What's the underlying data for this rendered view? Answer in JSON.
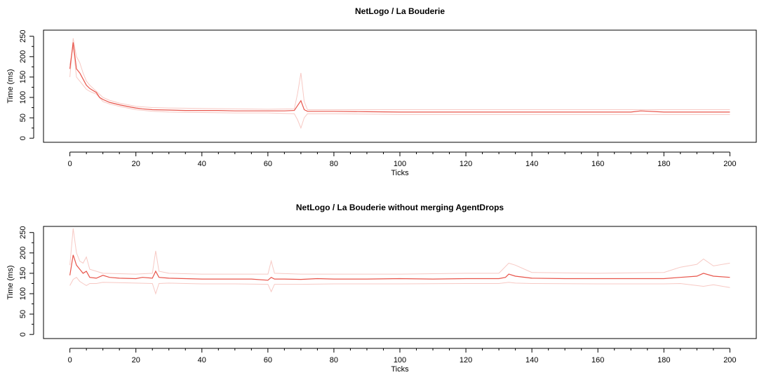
{
  "chart_data": [
    {
      "type": "line",
      "title": "NetLogo / La Bouderie",
      "xlabel": "Ticks",
      "ylabel": "Time (ms)",
      "xlim": [
        -8,
        208
      ],
      "ylim": [
        -10,
        265
      ],
      "xticks": [
        0,
        20,
        40,
        60,
        80,
        100,
        120,
        140,
        160,
        180,
        200
      ],
      "yticks": [
        0,
        50,
        100,
        150,
        200,
        250
      ],
      "grid": false,
      "colors": {
        "mean": "#e8544a",
        "band": "#f7c9c4"
      },
      "series": [
        {
          "x": [
            0,
            1,
            2,
            3,
            4,
            5,
            6,
            7,
            8,
            9,
            10,
            12,
            15,
            18,
            20,
            22,
            25,
            30,
            35,
            40,
            45,
            50,
            55,
            60,
            65,
            68,
            69,
            70,
            71,
            72,
            75,
            80,
            90,
            100,
            110,
            120,
            130,
            140,
            150,
            160,
            170,
            173,
            180,
            190,
            200
          ],
          "values": [
            170,
            235,
            170,
            160,
            145,
            130,
            122,
            117,
            112,
            100,
            95,
            88,
            82,
            77,
            74,
            72,
            70,
            69,
            68,
            68,
            68,
            67,
            67,
            67,
            67,
            68,
            80,
            92,
            70,
            66,
            66,
            66,
            65,
            64,
            64,
            64,
            64,
            64,
            64,
            64,
            64,
            67,
            64,
            64,
            64
          ]
        },
        {
          "x": [
            0,
            1,
            2,
            3,
            4,
            5,
            6,
            8,
            10,
            12,
            15,
            20,
            25,
            30,
            40,
            50,
            60,
            68,
            69,
            70,
            71,
            72,
            80,
            100,
            120,
            140,
            160,
            180,
            200
          ],
          "values": [
            150,
            245,
            200,
            185,
            160,
            140,
            130,
            115,
            100,
            93,
            86,
            78,
            75,
            74,
            73,
            72,
            71,
            72,
            110,
            160,
            90,
            70,
            70,
            70,
            70,
            70,
            70,
            70,
            70
          ]
        },
        {
          "x": [
            0,
            1,
            2,
            3,
            4,
            5,
            6,
            8,
            10,
            12,
            15,
            20,
            25,
            30,
            40,
            50,
            60,
            68,
            69,
            70,
            71,
            72,
            80,
            100,
            120,
            140,
            160,
            180,
            200
          ],
          "values": [
            180,
            225,
            150,
            140,
            130,
            120,
            115,
            108,
            90,
            84,
            78,
            70,
            66,
            64,
            63,
            62,
            62,
            60,
            45,
            25,
            50,
            60,
            60,
            58,
            58,
            58,
            58,
            58,
            58
          ]
        }
      ]
    },
    {
      "type": "line",
      "title": "NetLogo / La Bouderie without merging AgentDrops",
      "xlabel": "Ticks",
      "ylabel": "Time (ms)",
      "xlim": [
        -8,
        208
      ],
      "ylim": [
        -10,
        265
      ],
      "xticks": [
        0,
        20,
        40,
        60,
        80,
        100,
        120,
        140,
        160,
        180,
        200
      ],
      "yticks": [
        0,
        50,
        100,
        150,
        200,
        250
      ],
      "grid": false,
      "colors": {
        "mean": "#e8544a",
        "band": "#f7c9c4"
      },
      "series": [
        {
          "x": [
            0,
            1,
            2,
            3,
            4,
            5,
            6,
            8,
            10,
            12,
            15,
            20,
            22,
            25,
            26,
            27,
            30,
            35,
            40,
            45,
            50,
            55,
            60,
            61,
            62,
            65,
            70,
            75,
            80,
            90,
            100,
            110,
            120,
            130,
            132,
            133,
            135,
            140,
            150,
            160,
            170,
            180,
            185,
            190,
            192,
            195,
            200
          ],
          "values": [
            145,
            195,
            170,
            160,
            150,
            155,
            140,
            138,
            145,
            140,
            138,
            137,
            140,
            138,
            155,
            140,
            138,
            137,
            136,
            136,
            136,
            136,
            133,
            140,
            136,
            136,
            135,
            137,
            136,
            136,
            137,
            136,
            137,
            137,
            140,
            148,
            143,
            138,
            137,
            137,
            137,
            137,
            140,
            143,
            150,
            143,
            140
          ]
        },
        {
          "x": [
            0,
            1,
            2,
            3,
            4,
            5,
            6,
            8,
            10,
            20,
            25,
            26,
            27,
            30,
            40,
            50,
            60,
            61,
            62,
            70,
            80,
            100,
            120,
            130,
            133,
            135,
            140,
            160,
            180,
            185,
            190,
            192,
            195,
            200
          ],
          "values": [
            170,
            260,
            200,
            180,
            175,
            190,
            160,
            155,
            150,
            148,
            150,
            205,
            155,
            150,
            148,
            148,
            148,
            180,
            150,
            148,
            148,
            148,
            150,
            150,
            175,
            170,
            152,
            150,
            152,
            165,
            172,
            185,
            168,
            175
          ]
        },
        {
          "x": [
            0,
            1,
            2,
            3,
            4,
            5,
            6,
            8,
            10,
            20,
            25,
            26,
            27,
            30,
            40,
            50,
            60,
            61,
            62,
            70,
            80,
            100,
            120,
            130,
            133,
            135,
            140,
            160,
            180,
            185,
            190,
            192,
            195,
            200
          ],
          "values": [
            120,
            135,
            140,
            130,
            125,
            120,
            125,
            125,
            128,
            126,
            125,
            100,
            125,
            126,
            124,
            124,
            123,
            105,
            123,
            123,
            124,
            124,
            125,
            125,
            128,
            126,
            125,
            124,
            124,
            125,
            120,
            118,
            122,
            115
          ]
        }
      ]
    }
  ]
}
